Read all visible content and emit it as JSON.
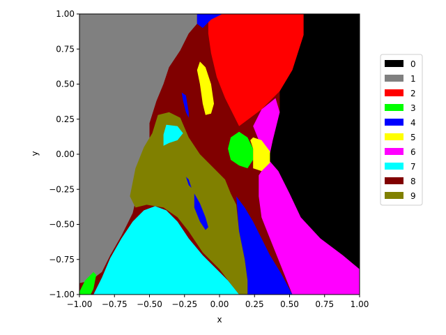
{
  "chart_data": {
    "type": "heatmap",
    "title": "",
    "xlabel": "x",
    "ylabel": "y",
    "xlim": [
      -1.0,
      1.0
    ],
    "ylim": [
      -1.0,
      1.0
    ],
    "x_ticks": [
      "−1.00",
      "−0.75",
      "−0.50",
      "−0.25",
      "0.00",
      "0.25",
      "0.50",
      "0.75",
      "1.00"
    ],
    "x_tick_values": [
      -1.0,
      -0.75,
      -0.5,
      -0.25,
      0.0,
      0.25,
      0.5,
      0.75,
      1.0
    ],
    "y_ticks": [
      "−1.00",
      "−0.75",
      "−0.50",
      "−0.25",
      "0.00",
      "0.25",
      "0.50",
      "0.75",
      "1.00"
    ],
    "y_tick_values": [
      -1.0,
      -0.75,
      -0.5,
      -0.25,
      0.0,
      0.25,
      0.5,
      0.75,
      1.0
    ],
    "grid": false,
    "legend_position": "right",
    "legend": [
      {
        "label": "0",
        "color": "#000000"
      },
      {
        "label": "1",
        "color": "#808080"
      },
      {
        "label": "2",
        "color": "#ff0000"
      },
      {
        "label": "3",
        "color": "#00ff00"
      },
      {
        "label": "4",
        "color": "#0000ff"
      },
      {
        "label": "5",
        "color": "#ffff00"
      },
      {
        "label": "6",
        "color": "#ff00ff"
      },
      {
        "label": "7",
        "color": "#00ffff"
      },
      {
        "label": "8",
        "color": "#800000"
      },
      {
        "label": "9",
        "color": "#808000"
      }
    ],
    "regions": [
      {
        "class": "0",
        "name": "region-0-right",
        "points": [
          [
            1.0,
            1.0
          ],
          [
            0.6,
            1.0
          ],
          [
            0.6,
            0.85
          ],
          [
            0.52,
            0.6
          ],
          [
            0.43,
            0.45
          ],
          [
            0.43,
            0.3
          ],
          [
            0.38,
            0.1
          ],
          [
            0.35,
            -0.04
          ],
          [
            0.42,
            -0.12
          ],
          [
            0.5,
            -0.28
          ],
          [
            0.58,
            -0.45
          ],
          [
            0.72,
            -0.6
          ],
          [
            0.88,
            -0.72
          ],
          [
            1.0,
            -0.82
          ]
        ]
      },
      {
        "class": "1",
        "name": "region-1-left",
        "points": [
          [
            -1.0,
            1.0
          ],
          [
            -0.16,
            1.0
          ],
          [
            -0.16,
            0.93
          ],
          [
            -0.22,
            0.86
          ],
          [
            -0.28,
            0.74
          ],
          [
            -0.36,
            0.62
          ],
          [
            -0.4,
            0.5
          ],
          [
            -0.45,
            0.38
          ],
          [
            -0.5,
            0.22
          ],
          [
            -0.5,
            0.05
          ],
          [
            -0.54,
            -0.08
          ],
          [
            -0.58,
            -0.25
          ],
          [
            -0.62,
            -0.42
          ],
          [
            -0.7,
            -0.58
          ],
          [
            -0.78,
            -0.72
          ],
          [
            -0.84,
            -0.84
          ],
          [
            -0.92,
            -0.9
          ],
          [
            -1.0,
            -0.92
          ]
        ]
      },
      {
        "class": "8",
        "name": "region-8-center",
        "points": [
          [
            -0.16,
            0.93
          ],
          [
            -0.12,
            0.86
          ],
          [
            -0.08,
            0.72
          ],
          [
            -0.02,
            0.55
          ],
          [
            0.04,
            0.4
          ],
          [
            0.1,
            0.28
          ],
          [
            0.14,
            0.2
          ],
          [
            0.22,
            0.26
          ],
          [
            0.3,
            0.32
          ],
          [
            0.38,
            0.4
          ],
          [
            0.43,
            0.3
          ],
          [
            0.38,
            0.1
          ],
          [
            0.35,
            -0.04
          ],
          [
            0.3,
            -0.12
          ],
          [
            0.28,
            -0.15
          ],
          [
            0.22,
            -0.2
          ],
          [
            0.25,
            -0.35
          ],
          [
            0.3,
            -0.45
          ],
          [
            0.3,
            -0.55
          ],
          [
            0.22,
            -0.48
          ],
          [
            0.15,
            -0.35
          ],
          [
            0.08,
            -0.22
          ],
          [
            -0.02,
            -0.15
          ],
          [
            -0.1,
            -0.08
          ],
          [
            -0.22,
            0.0
          ],
          [
            -0.3,
            0.2
          ],
          [
            -0.44,
            0.28
          ],
          [
            -0.5,
            0.05
          ],
          [
            -0.5,
            0.22
          ],
          [
            -0.45,
            0.38
          ],
          [
            -0.4,
            0.5
          ],
          [
            -0.36,
            0.62
          ],
          [
            -0.28,
            0.74
          ],
          [
            -0.22,
            0.86
          ]
        ]
      },
      {
        "class": "2",
        "name": "region-2-top",
        "points": [
          [
            -0.08,
            1.0
          ],
          [
            0.6,
            1.0
          ],
          [
            0.6,
            0.85
          ],
          [
            0.52,
            0.6
          ],
          [
            0.43,
            0.45
          ],
          [
            0.38,
            0.4
          ],
          [
            0.3,
            0.32
          ],
          [
            0.22,
            0.26
          ],
          [
            0.14,
            0.2
          ],
          [
            0.1,
            0.28
          ],
          [
            0.04,
            0.4
          ],
          [
            -0.02,
            0.55
          ],
          [
            -0.06,
            0.72
          ],
          [
            -0.08,
            0.86
          ]
        ]
      },
      {
        "class": "4",
        "name": "region-4-top-sliver",
        "points": [
          [
            -0.16,
            1.0
          ],
          [
            0.02,
            1.0
          ],
          [
            -0.06,
            0.96
          ],
          [
            -0.12,
            0.9
          ],
          [
            -0.16,
            0.93
          ]
        ]
      },
      {
        "class": "5",
        "name": "region-5-upper",
        "points": [
          [
            -0.14,
            0.66
          ],
          [
            -0.1,
            0.62
          ],
          [
            -0.06,
            0.5
          ],
          [
            -0.04,
            0.36
          ],
          [
            -0.06,
            0.29
          ],
          [
            -0.1,
            0.28
          ],
          [
            -0.12,
            0.36
          ],
          [
            -0.14,
            0.5
          ],
          [
            -0.16,
            0.6
          ]
        ]
      },
      {
        "class": "4",
        "name": "region-4-thin-upper",
        "points": [
          [
            -0.27,
            0.44
          ],
          [
            -0.24,
            0.42
          ],
          [
            -0.22,
            0.3
          ],
          [
            -0.22,
            0.26
          ],
          [
            -0.24,
            0.3
          ],
          [
            -0.26,
            0.38
          ]
        ]
      },
      {
        "class": "6",
        "name": "region-6-right-upper",
        "points": [
          [
            0.3,
            0.32
          ],
          [
            0.4,
            0.4
          ],
          [
            0.43,
            0.3
          ],
          [
            0.38,
            0.1
          ],
          [
            0.35,
            -0.04
          ],
          [
            0.3,
            -0.04
          ],
          [
            0.28,
            0.1
          ],
          [
            0.24,
            0.2
          ]
        ]
      },
      {
        "class": "6",
        "name": "region-6-right-lower",
        "points": [
          [
            0.35,
            -0.04
          ],
          [
            0.42,
            -0.12
          ],
          [
            0.5,
            -0.28
          ],
          [
            0.58,
            -0.45
          ],
          [
            0.72,
            -0.6
          ],
          [
            0.88,
            -0.72
          ],
          [
            1.0,
            -0.82
          ],
          [
            1.0,
            -1.0
          ],
          [
            0.52,
            -1.0
          ],
          [
            0.46,
            -0.85
          ],
          [
            0.4,
            -0.7
          ],
          [
            0.34,
            -0.55
          ],
          [
            0.3,
            -0.45
          ],
          [
            0.28,
            -0.3
          ],
          [
            0.28,
            -0.15
          ],
          [
            0.3,
            -0.12
          ]
        ]
      },
      {
        "class": "4",
        "name": "region-4-lower",
        "points": [
          [
            0.12,
            -0.3
          ],
          [
            0.18,
            -0.38
          ],
          [
            0.24,
            -0.48
          ],
          [
            0.3,
            -0.6
          ],
          [
            0.36,
            -0.72
          ],
          [
            0.44,
            -0.85
          ],
          [
            0.52,
            -1.0
          ],
          [
            0.2,
            -1.0
          ],
          [
            0.2,
            -0.9
          ],
          [
            0.18,
            -0.75
          ],
          [
            0.14,
            -0.55
          ]
        ]
      },
      {
        "class": "9",
        "name": "region-9-olive",
        "points": [
          [
            -0.44,
            0.28
          ],
          [
            -0.36,
            0.3
          ],
          [
            -0.28,
            0.26
          ],
          [
            -0.22,
            0.12
          ],
          [
            -0.14,
            0.0
          ],
          [
            -0.04,
            -0.1
          ],
          [
            0.04,
            -0.18
          ],
          [
            0.08,
            -0.28
          ],
          [
            0.12,
            -0.36
          ],
          [
            0.14,
            -0.55
          ],
          [
            0.18,
            -0.75
          ],
          [
            0.2,
            -0.9
          ],
          [
            0.2,
            -1.0
          ],
          [
            0.14,
            -1.0
          ],
          [
            0.1,
            -0.95
          ],
          [
            0.0,
            -0.82
          ],
          [
            -0.12,
            -0.7
          ],
          [
            -0.22,
            -0.55
          ],
          [
            -0.3,
            -0.45
          ],
          [
            -0.4,
            -0.38
          ],
          [
            -0.52,
            -0.36
          ],
          [
            -0.6,
            -0.38
          ],
          [
            -0.64,
            -0.3
          ],
          [
            -0.6,
            -0.1
          ],
          [
            -0.54,
            0.05
          ],
          [
            -0.48,
            0.15
          ]
        ]
      },
      {
        "class": "7",
        "name": "region-7-small",
        "points": [
          [
            -0.38,
            0.21
          ],
          [
            -0.3,
            0.2
          ],
          [
            -0.26,
            0.15
          ],
          [
            -0.3,
            0.1
          ],
          [
            -0.36,
            0.08
          ],
          [
            -0.4,
            0.06
          ],
          [
            -0.4,
            0.14
          ]
        ]
      },
      {
        "class": "4",
        "name": "region-4-thin-mid",
        "points": [
          [
            -0.24,
            -0.16
          ],
          [
            -0.22,
            -0.18
          ],
          [
            -0.2,
            -0.24
          ],
          [
            -0.22,
            -0.22
          ]
        ]
      },
      {
        "class": "4",
        "name": "region-4-mid",
        "points": [
          [
            -0.18,
            -0.28
          ],
          [
            -0.14,
            -0.35
          ],
          [
            -0.1,
            -0.45
          ],
          [
            -0.08,
            -0.52
          ],
          [
            -0.1,
            -0.54
          ],
          [
            -0.14,
            -0.48
          ],
          [
            -0.18,
            -0.38
          ]
        ]
      },
      {
        "class": "7",
        "name": "region-7-bottom",
        "points": [
          [
            -0.9,
            -1.0
          ],
          [
            -0.84,
            -0.88
          ],
          [
            -0.78,
            -0.74
          ],
          [
            -0.7,
            -0.6
          ],
          [
            -0.62,
            -0.48
          ],
          [
            -0.54,
            -0.4
          ],
          [
            -0.46,
            -0.37
          ],
          [
            -0.38,
            -0.4
          ],
          [
            -0.3,
            -0.48
          ],
          [
            -0.22,
            -0.6
          ],
          [
            -0.12,
            -0.72
          ],
          [
            -0.02,
            -0.82
          ],
          [
            0.06,
            -0.9
          ],
          [
            0.14,
            -1.0
          ]
        ]
      },
      {
        "class": "3",
        "name": "region-3-bottom-left",
        "points": [
          [
            -1.0,
            -0.98
          ],
          [
            -0.96,
            -0.9
          ],
          [
            -0.9,
            -0.84
          ],
          [
            -0.88,
            -0.86
          ],
          [
            -0.9,
            -0.96
          ],
          [
            -0.92,
            -1.0
          ],
          [
            -1.0,
            -1.0
          ]
        ]
      },
      {
        "class": "3",
        "name": "region-3-circle",
        "points": [
          [
            0.14,
            0.16
          ],
          [
            0.2,
            0.12
          ],
          [
            0.24,
            0.04
          ],
          [
            0.24,
            -0.04
          ],
          [
            0.2,
            -0.1
          ],
          [
            0.14,
            -0.08
          ],
          [
            0.08,
            -0.04
          ],
          [
            0.06,
            0.04
          ],
          [
            0.08,
            0.12
          ]
        ]
      },
      {
        "class": "5",
        "name": "region-5-circle",
        "points": [
          [
            0.24,
            0.12
          ],
          [
            0.3,
            0.1
          ],
          [
            0.36,
            0.02
          ],
          [
            0.36,
            -0.06
          ],
          [
            0.3,
            -0.12
          ],
          [
            0.24,
            -0.1
          ],
          [
            0.24,
            -0.04
          ],
          [
            0.24,
            0.04
          ],
          [
            0.22,
            0.1
          ]
        ]
      }
    ]
  }
}
